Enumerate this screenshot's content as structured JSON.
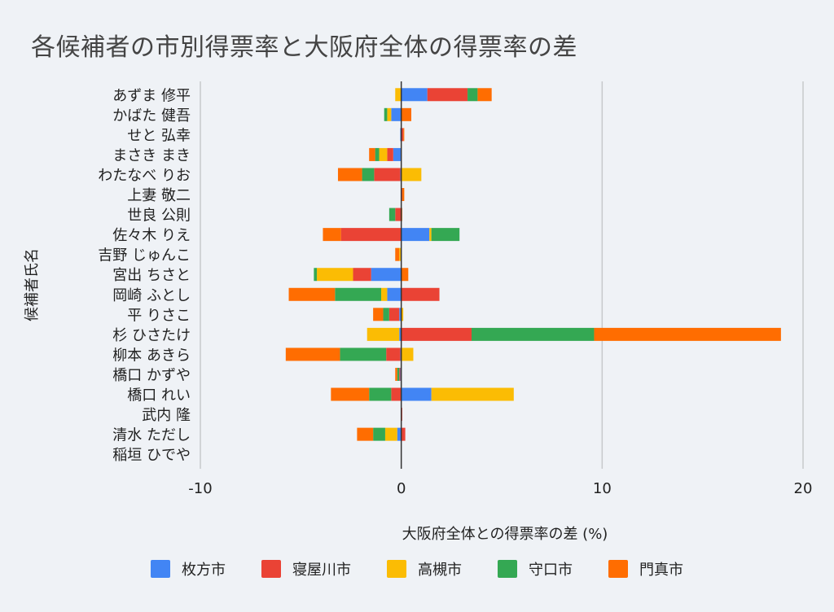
{
  "chart_data": {
    "type": "bar",
    "orientation": "horizontal",
    "stacked": true,
    "title": "各候補者の市別得票率と大阪府全体の得票率の差",
    "xlabel": "大阪府全体との得票率の差 (%)",
    "ylabel": "候補者氏名",
    "xlim": [
      -10,
      20
    ],
    "xticks": [
      -10,
      0,
      10,
      20
    ],
    "categories": [
      "あずま 修平",
      "かばた 健吾",
      "せと 弘幸",
      "まさき まき",
      "わたなべ りお",
      "上妻 敬二",
      "世良 公則",
      "佐々木 りえ",
      "吉野 じゅんこ",
      "宮出 ちさと",
      "岡崎 ふとし",
      "平 りさこ",
      "杉 ひさたけ",
      "柳本 あきら",
      "橋口 かずや",
      "橋口 れい",
      "武内 隆",
      "清水 ただし",
      "稲垣 ひでや"
    ],
    "series": [
      {
        "name": "枚方市",
        "color": "#4285f4",
        "values": [
          1.3,
          -0.5,
          -0.05,
          -0.4,
          -0.05,
          0,
          0,
          1.4,
          0,
          -1.5,
          -0.7,
          -0.1,
          -0.1,
          -0.05,
          -0.05,
          1.5,
          0,
          -0.2,
          0
        ]
      },
      {
        "name": "寝屋川市",
        "color": "#ea4335",
        "values": [
          2.0,
          0,
          0.1,
          -0.3,
          -1.3,
          0.05,
          -0.3,
          -3.0,
          0,
          -0.9,
          1.9,
          -0.5,
          3.5,
          -0.7,
          -0.05,
          -0.5,
          0.05,
          0.2,
          0
        ]
      },
      {
        "name": "高槻市",
        "color": "#fbbc04",
        "values": [
          -0.3,
          -0.2,
          0,
          -0.4,
          1.0,
          0,
          0,
          0.1,
          -0.1,
          -1.8,
          -0.3,
          0.1,
          -1.6,
          0.6,
          0,
          4.1,
          0,
          -0.6,
          0
        ]
      },
      {
        "name": "守口市",
        "color": "#34a853",
        "values": [
          0.5,
          -0.15,
          0,
          -0.2,
          -0.6,
          0,
          -0.3,
          1.4,
          0,
          -0.15,
          -2.3,
          -0.3,
          6.1,
          -2.3,
          -0.1,
          -1.1,
          0,
          -0.6,
          0
        ]
      },
      {
        "name": "門真市",
        "color": "#ff6d01",
        "values": [
          0.7,
          0.5,
          0.05,
          -0.3,
          -1.2,
          0.1,
          0.05,
          -0.9,
          -0.2,
          0.35,
          -2.3,
          -0.5,
          9.3,
          -2.7,
          -0.1,
          -1.9,
          0,
          -0.8,
          0
        ]
      }
    ]
  }
}
